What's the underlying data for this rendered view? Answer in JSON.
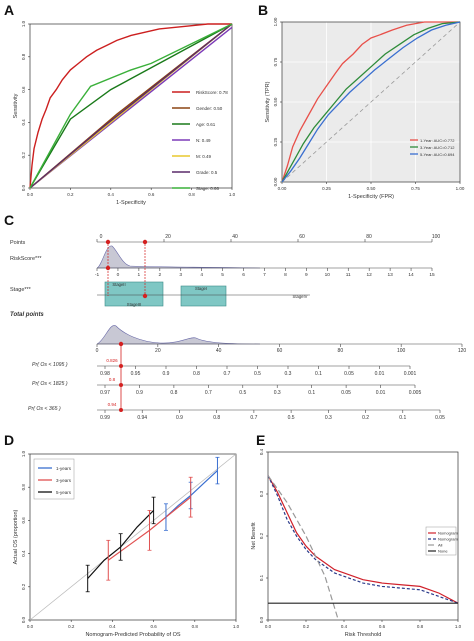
{
  "panels": {
    "A": "A",
    "B": "B",
    "C": "C",
    "D": "D",
    "E": "E"
  },
  "chart_data": [
    {
      "id": "A",
      "type": "line",
      "xlabel": "1-Specificity",
      "ylabel": "Sensitivity",
      "xlim": [
        0,
        1
      ],
      "ylim": [
        0,
        1
      ],
      "xticks": [
        "0.0",
        "0.2",
        "0.4",
        "0.6",
        "0.8",
        "1.0"
      ],
      "yticks": [
        "0.0",
        "0.2",
        "0.4",
        "0.6",
        "0.8",
        "1.0"
      ],
      "legend_position": "right",
      "series": [
        {
          "name": "RiskScore: 0.78",
          "color": "#cc1f1f",
          "x": [
            0,
            0.01,
            0.02,
            0.04,
            0.06,
            0.08,
            0.1,
            0.13,
            0.16,
            0.2,
            0.24,
            0.28,
            0.33,
            0.38,
            0.43,
            0.5,
            0.57,
            0.64,
            0.72,
            0.8,
            0.88,
            1
          ],
          "y": [
            0,
            0.14,
            0.24,
            0.34,
            0.42,
            0.48,
            0.55,
            0.6,
            0.66,
            0.72,
            0.76,
            0.8,
            0.84,
            0.87,
            0.9,
            0.93,
            0.95,
            0.97,
            0.98,
            0.99,
            1,
            1
          ]
        },
        {
          "name": "Gender: 0.50",
          "color": "#8b4513",
          "x": [
            0,
            0.43,
            1
          ],
          "y": [
            0,
            0.45,
            1
          ]
        },
        {
          "name": "Age: 0.61",
          "color": "#1a7a1a",
          "x": [
            0,
            0.2,
            0.4,
            1
          ],
          "y": [
            0,
            0.42,
            0.6,
            1
          ]
        },
        {
          "name": "N: 0.49",
          "color": "#7d3cb8",
          "x": [
            0,
            1
          ],
          "y": [
            0,
            0.98
          ]
        },
        {
          "name": "M: 0.49",
          "color": "#e8c92f",
          "x": [
            0,
            1
          ],
          "y": [
            0,
            1
          ]
        },
        {
          "name": "Grade: 0.5",
          "color": "#5a2a6a",
          "x": [
            0,
            0.35,
            1
          ],
          "y": [
            0,
            0.36,
            1
          ]
        },
        {
          "name": "Stage: 0.66",
          "color": "#3ab03a",
          "x": [
            0,
            0.2,
            0.3,
            0.5,
            0.6,
            1
          ],
          "y": [
            0,
            0.45,
            0.62,
            0.72,
            0.76,
            1
          ]
        }
      ]
    },
    {
      "id": "B",
      "type": "line",
      "xlabel": "1-Specificity (FPR)",
      "ylabel": "Sensitivity (TPR)",
      "xlim": [
        0,
        1
      ],
      "ylim": [
        0,
        1
      ],
      "xticks": [
        "0.00",
        "0.25",
        "0.50",
        "0.75",
        "1.00"
      ],
      "yticks": [
        "0.00",
        "0.25",
        "0.50",
        "0.75",
        "1.00"
      ],
      "legend_position": "bottom-right",
      "series": [
        {
          "name": "1-Year: AUC=0.772",
          "color": "#e8504a",
          "x": [
            0,
            0.03,
            0.06,
            0.1,
            0.14,
            0.2,
            0.25,
            0.3,
            0.34,
            0.4,
            0.45,
            0.5,
            0.55,
            0.62,
            0.7,
            0.8,
            0.9,
            1
          ],
          "y": [
            0,
            0.1,
            0.22,
            0.32,
            0.4,
            0.52,
            0.6,
            0.68,
            0.74,
            0.8,
            0.86,
            0.9,
            0.92,
            0.95,
            0.98,
            1,
            1,
            1
          ]
        },
        {
          "name": "3-Year: AUC=0.712",
          "color": "#2e8b3a",
          "x": [
            0,
            0.04,
            0.08,
            0.12,
            0.18,
            0.24,
            0.3,
            0.36,
            0.42,
            0.5,
            0.58,
            0.66,
            0.74,
            0.82,
            0.9,
            1
          ],
          "y": [
            0,
            0.08,
            0.16,
            0.24,
            0.34,
            0.42,
            0.5,
            0.58,
            0.64,
            0.72,
            0.8,
            0.86,
            0.92,
            0.96,
            0.99,
            1
          ]
        },
        {
          "name": "5-Year: AUC=0.694",
          "color": "#3a6fd0",
          "x": [
            0,
            0.05,
            0.1,
            0.15,
            0.2,
            0.26,
            0.32,
            0.38,
            0.45,
            0.52,
            0.6,
            0.68,
            0.76,
            0.84,
            0.92,
            1
          ],
          "y": [
            0,
            0.07,
            0.15,
            0.24,
            0.33,
            0.42,
            0.49,
            0.56,
            0.63,
            0.7,
            0.77,
            0.84,
            0.9,
            0.95,
            0.98,
            1
          ]
        }
      ]
    },
    {
      "id": "C",
      "type": "nomogram",
      "rows": [
        {
          "label": "Points",
          "ticks": [
            "0",
            "20",
            "40",
            "60",
            "80",
            "100"
          ]
        },
        {
          "label": "RiskScore***",
          "ticks": [
            "-1",
            "0",
            "1",
            "2",
            "3",
            "4",
            "5",
            "6",
            "7",
            "8",
            "9",
            "10",
            "11",
            "12",
            "13",
            "14",
            "15"
          ]
        },
        {
          "label": "Stage***",
          "tags": [
            "StageII",
            "StageIII",
            "StageI",
            "StageIV"
          ]
        },
        {
          "label": "Total points",
          "ticks": [
            "0",
            "20",
            "40",
            "60",
            "80",
            "100",
            "120"
          ]
        },
        {
          "label": "Pr( Os < 1095 )",
          "ticks": [
            "0.98",
            "0.95",
            "0.9",
            "0.8",
            "0.7",
            "0.5",
            "0.3",
            "0.1",
            "0.05",
            "0.01",
            "0.001"
          ]
        },
        {
          "label": "Pr( Os < 1825 )",
          "ticks": [
            "0.97",
            "0.9",
            "0.8",
            "0.7",
            "0.5",
            "0.3",
            "0.1",
            "0.05",
            "0.01",
            "0.005"
          ]
        },
        {
          "label": "Pr( Os < 365 )",
          "ticks": [
            "0.99",
            "0.94",
            "0.9",
            "0.8",
            "0.7",
            "0.5",
            "0.3",
            "0.2",
            "0.1",
            "0.05"
          ]
        }
      ],
      "marker_values": [
        "0.826",
        "0.8",
        "0.94"
      ]
    },
    {
      "id": "D",
      "type": "line",
      "xlabel": "Nomogram-Predicted Probability of OS",
      "ylabel": "Actual OS (proportion)",
      "xlim": [
        0,
        1
      ],
      "ylim": [
        0,
        1
      ],
      "xticks": [
        "0.0",
        "0.2",
        "0.4",
        "0.6",
        "0.8",
        "1.0"
      ],
      "yticks": [
        "0.0",
        "0.2",
        "0.4",
        "0.6",
        "0.8",
        "1.0"
      ],
      "legend_position": "top-left",
      "series": [
        {
          "name": "1-years",
          "color": "#3a6fd0",
          "x": [
            0.66,
            0.72,
            0.78,
            0.84,
            0.91
          ],
          "y": [
            0.62,
            0.69,
            0.75,
            0.82,
            0.9
          ]
        },
        {
          "name": "3-years",
          "color": "#e05050",
          "x": [
            0.38,
            0.48,
            0.58,
            0.68,
            0.78
          ],
          "y": [
            0.36,
            0.45,
            0.54,
            0.64,
            0.74
          ]
        },
        {
          "name": "5-years",
          "color": "#111111",
          "x": [
            0.28,
            0.36,
            0.44,
            0.52,
            0.6
          ],
          "y": [
            0.25,
            0.36,
            0.44,
            0.56,
            0.66
          ]
        }
      ]
    },
    {
      "id": "E",
      "type": "line",
      "xlabel": "Risk Threshold",
      "ylabel": "Net Benefit",
      "xlim": [
        0,
        1
      ],
      "ylim": [
        -0.05,
        0.45
      ],
      "xticks": [
        "0.0",
        "0.2",
        "0.4",
        "0.6",
        "0.8",
        "1.0"
      ],
      "yticks": [
        "0.0",
        "0.1",
        "0.2",
        "0.3",
        "0.4"
      ],
      "legend_position": "right",
      "series": [
        {
          "name": "Nomogram",
          "color": "#d0202a",
          "x": [
            0,
            0.05,
            0.1,
            0.15,
            0.2,
            0.25,
            0.3,
            0.35,
            0.4,
            0.5,
            0.6,
            0.7,
            0.8,
            0.9,
            1
          ],
          "y": [
            0.38,
            0.33,
            0.27,
            0.21,
            0.17,
            0.14,
            0.12,
            0.1,
            0.09,
            0.07,
            0.06,
            0.055,
            0.05,
            0.03,
            0.0
          ]
        },
        {
          "name": "Nomogram",
          "color": "#2a3a8a",
          "x": [
            0,
            0.05,
            0.1,
            0.15,
            0.2,
            0.25,
            0.3,
            0.35,
            0.4,
            0.5,
            0.6,
            0.7,
            0.8,
            0.9,
            1
          ],
          "y": [
            0.38,
            0.32,
            0.25,
            0.2,
            0.16,
            0.13,
            0.11,
            0.09,
            0.08,
            0.06,
            0.05,
            0.045,
            0.04,
            0.02,
            0.0
          ]
        },
        {
          "name": "All",
          "color": "#999999",
          "x": [
            0,
            0.1,
            0.2,
            0.3,
            0.37
          ],
          "y": [
            0.38,
            0.3,
            0.2,
            0.08,
            -0.05
          ]
        },
        {
          "name": "None",
          "color": "#222222",
          "x": [
            0,
            1
          ],
          "y": [
            0,
            0
          ]
        }
      ]
    }
  ]
}
